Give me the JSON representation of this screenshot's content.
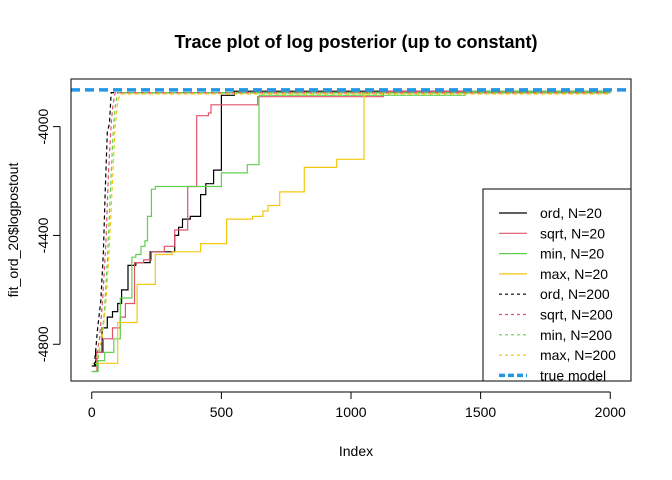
{
  "chart_data": {
    "type": "line",
    "title": "Trace plot of log posterior (up to constant)",
    "xlabel": "Index",
    "ylabel": "fit_ord_20$logpostout",
    "xlim": [
      -80,
      2080
    ],
    "ylim": [
      -4935,
      -3825
    ],
    "xticks": [
      0,
      500,
      1000,
      1500,
      2000
    ],
    "yticks": [
      -4800,
      -4400,
      -4000
    ],
    "legend_position": "bottom-right",
    "series": [
      {
        "name": "ord, N=20",
        "color": "#000000",
        "dash": "solid",
        "width": 1.2,
        "x": [
          0,
          15,
          15,
          40,
          40,
          60,
          60,
          80,
          80,
          100,
          100,
          115,
          115,
          140,
          140,
          170,
          170,
          225,
          225,
          320,
          320,
          335,
          335,
          350,
          350,
          380,
          380,
          420,
          420,
          440,
          440,
          470,
          470,
          500,
          500,
          550,
          550,
          720,
          720,
          2000
        ],
        "y": [
          -4880,
          -4880,
          -4830,
          -4830,
          -4740,
          -4740,
          -4700,
          -4700,
          -4680,
          -4680,
          -4650,
          -4650,
          -4600,
          -4600,
          -4510,
          -4510,
          -4500,
          -4500,
          -4460,
          -4460,
          -4400,
          -4400,
          -4370,
          -4370,
          -4340,
          -4340,
          -4330,
          -4330,
          -4250,
          -4250,
          -4210,
          -4210,
          -4160,
          -4160,
          -3885,
          -3885,
          -3870,
          -3870,
          -3870,
          -3870
        ]
      },
      {
        "name": "sqrt, N=20",
        "color": "#DF536B",
        "dash": "solid",
        "width": 1.2,
        "x": [
          0,
          20,
          20,
          45,
          45,
          80,
          80,
          110,
          110,
          130,
          130,
          165,
          165,
          200,
          200,
          230,
          230,
          280,
          280,
          320,
          320,
          370,
          370,
          405,
          405,
          450,
          450,
          460,
          460,
          640,
          640,
          1125,
          1125,
          1140,
          1140,
          2000
        ],
        "y": [
          -4900,
          -4900,
          -4830,
          -4830,
          -4780,
          -4780,
          -4740,
          -4740,
          -4700,
          -4700,
          -4650,
          -4650,
          -4500,
          -4500,
          -4490,
          -4490,
          -4460,
          -4460,
          -4440,
          -4440,
          -4380,
          -4380,
          -4220,
          -4220,
          -3960,
          -3960,
          -3950,
          -3950,
          -3920,
          -3920,
          -3890,
          -3890,
          -3870,
          -3870,
          -3870,
          -3870
        ]
      },
      {
        "name": "min, N=20",
        "color": "#61D04F",
        "dash": "solid",
        "width": 1.2,
        "x": [
          0,
          25,
          25,
          50,
          50,
          85,
          85,
          110,
          110,
          155,
          155,
          170,
          170,
          190,
          190,
          205,
          205,
          215,
          215,
          230,
          230,
          245,
          245,
          500,
          500,
          600,
          600,
          645,
          645,
          1440,
          1440,
          1460,
          1460,
          2000
        ],
        "y": [
          -4900,
          -4900,
          -4860,
          -4860,
          -4830,
          -4830,
          -4780,
          -4780,
          -4630,
          -4630,
          -4480,
          -4480,
          -4470,
          -4470,
          -4440,
          -4440,
          -4420,
          -4420,
          -4330,
          -4330,
          -4230,
          -4230,
          -4220,
          -4220,
          -4170,
          -4170,
          -4140,
          -4140,
          -3885,
          -3885,
          -3870,
          -3870,
          -3870,
          -3870
        ]
      },
      {
        "name": "max, N=20",
        "color": "#F5C710",
        "dash": "solid",
        "width": 1.2,
        "x": [
          0,
          100,
          100,
          175,
          175,
          245,
          245,
          310,
          310,
          420,
          420,
          520,
          520,
          620,
          620,
          660,
          660,
          680,
          680,
          725,
          725,
          820,
          820,
          945,
          945,
          1050,
          1050,
          2000
        ],
        "y": [
          -4870,
          -4870,
          -4720,
          -4720,
          -4580,
          -4580,
          -4470,
          -4470,
          -4460,
          -4460,
          -4430,
          -4430,
          -4340,
          -4340,
          -4330,
          -4330,
          -4310,
          -4310,
          -4290,
          -4290,
          -4240,
          -4240,
          -4150,
          -4150,
          -4120,
          -4120,
          -3875,
          -3875
        ]
      },
      {
        "name": "ord, N=200",
        "color": "#000000",
        "dash": "4,3",
        "width": 1.2,
        "x": [
          10,
          22,
          35,
          45,
          52,
          60,
          68,
          75,
          2000
        ],
        "y": [
          -4880,
          -4750,
          -4640,
          -4460,
          -4240,
          -4020,
          -3990,
          -3875,
          -3875
        ]
      },
      {
        "name": "sqrt, N=200",
        "color": "#DF536B",
        "dash": "4,3",
        "width": 1.2,
        "x": [
          15,
          30,
          42,
          55,
          65,
          75,
          82,
          90,
          2000
        ],
        "y": [
          -4860,
          -4780,
          -4640,
          -4420,
          -4160,
          -3990,
          -3920,
          -3875,
          -3875
        ]
      },
      {
        "name": "min, N=200",
        "color": "#61D04F",
        "dash": "4,3",
        "width": 1.2,
        "x": [
          18,
          35,
          48,
          60,
          72,
          82,
          90,
          100,
          2000
        ],
        "y": [
          -4880,
          -4800,
          -4690,
          -4500,
          -4240,
          -4030,
          -3930,
          -3875,
          -3875
        ]
      },
      {
        "name": "max, N=200",
        "color": "#F5C710",
        "dash": "4,3",
        "width": 1.2,
        "x": [
          20,
          40,
          55,
          68,
          80,
          90,
          100,
          110,
          2000
        ],
        "y": [
          -4850,
          -4780,
          -4640,
          -4440,
          -4200,
          -4000,
          -3910,
          -3880,
          -3880
        ]
      }
    ],
    "reference_line": {
      "name": "true model",
      "color": "#2297E6",
      "dash": "9,5",
      "width": 3.5,
      "y": -3865
    }
  }
}
